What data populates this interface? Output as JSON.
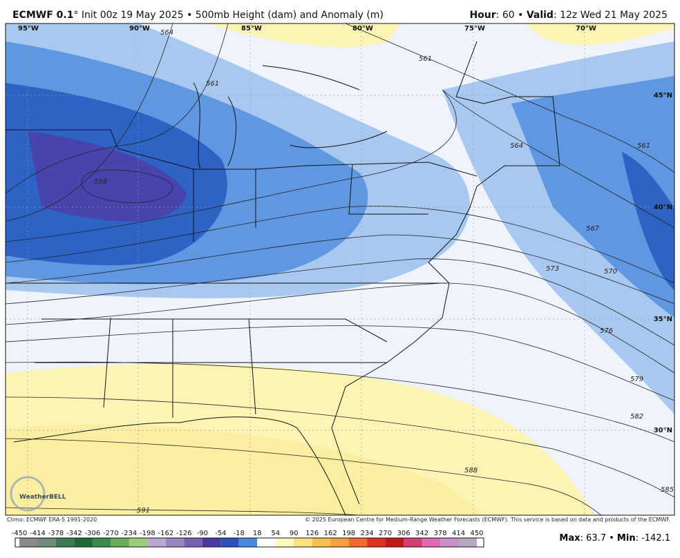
{
  "header": {
    "model": "ECMWF 0.1",
    "rest": "° Init 00z 19 May 2025 • 500mb Height (dam) and Anomaly (m)",
    "hour_label": "Hour",
    "hour": ": 60 • ",
    "valid_label": "Valid",
    "valid": ": 12z Wed 21 May 2025"
  },
  "longitudes": [
    "95°W",
    "90°W",
    "85°W",
    "80°W",
    "75°W",
    "70°W"
  ],
  "latitudes": [
    "45°N",
    "40°N",
    "35°N",
    "30°N"
  ],
  "contours": [
    "561",
    "564",
    "558",
    "561",
    "564",
    "561",
    "567",
    "570",
    "573",
    "576",
    "579",
    "582",
    "585",
    "588",
    "591"
  ],
  "logo": "WeatherBELL",
  "footer": {
    "climo": "Climo: ECMWF ERA-5 1991-2020",
    "copyright": "© 2025 European Centre for Medium-Range Weather Forecasts (ECMWF). This service is based on data and products of the ECMWF."
  },
  "colorbar": [
    -450,
    -414,
    -378,
    -342,
    -306,
    -270,
    -234,
    -198,
    -162,
    -126,
    -90,
    -54,
    -18,
    18,
    54,
    90,
    126,
    162,
    198,
    234,
    270,
    306,
    342,
    378,
    414,
    450
  ],
  "stats": {
    "max_label": "Max",
    "max": ": 63.7 • ",
    "min_label": "Min",
    "min": ": -142.1"
  }
}
